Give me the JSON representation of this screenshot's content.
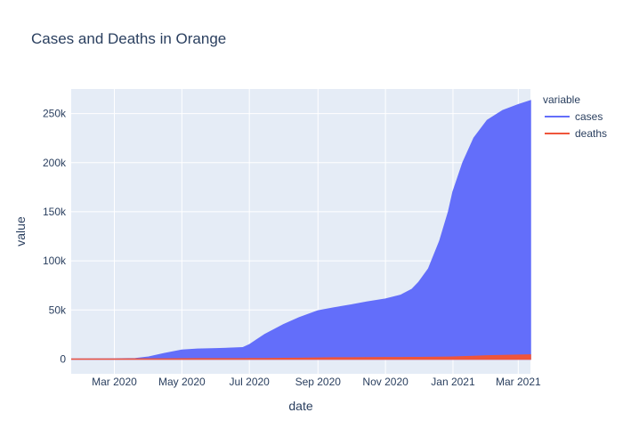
{
  "chart_data": {
    "type": "area",
    "title": "Cases and Deaths in Orange",
    "xlabel": "date",
    "ylabel": "value",
    "legend_title": "variable",
    "legend_position": "right",
    "grid": true,
    "ylim": [
      -15000,
      275000
    ],
    "xlim": [
      "2020-01-22",
      "2021-03-12"
    ],
    "x_ticks": [
      {
        "date": "2020-03-01",
        "label": "Mar 2020"
      },
      {
        "date": "2020-05-01",
        "label": "May 2020"
      },
      {
        "date": "2020-07-01",
        "label": "Jul 2020"
      },
      {
        "date": "2020-09-01",
        "label": "Sep 2020"
      },
      {
        "date": "2020-11-01",
        "label": "Nov 2020"
      },
      {
        "date": "2021-01-01",
        "label": "Jan 2021"
      },
      {
        "date": "2021-03-01",
        "label": "Mar 2021"
      }
    ],
    "y_ticks": [
      {
        "value": 0,
        "label": "0"
      },
      {
        "value": 50000,
        "label": "50k"
      },
      {
        "value": 100000,
        "label": "100k"
      },
      {
        "value": 150000,
        "label": "150k"
      },
      {
        "value": 200000,
        "label": "200k"
      },
      {
        "value": 250000,
        "label": "250k"
      }
    ],
    "x": [
      "2020-01-22",
      "2020-03-01",
      "2020-03-20",
      "2020-04-01",
      "2020-04-15",
      "2020-05-01",
      "2020-05-15",
      "2020-06-01",
      "2020-06-15",
      "2020-06-25",
      "2020-07-01",
      "2020-07-15",
      "2020-08-01",
      "2020-08-15",
      "2020-09-01",
      "2020-09-15",
      "2020-10-01",
      "2020-10-15",
      "2020-11-01",
      "2020-11-15",
      "2020-11-25",
      "2020-12-01",
      "2020-12-10",
      "2020-12-20",
      "2020-12-28",
      "2021-01-01",
      "2021-01-10",
      "2021-01-20",
      "2021-02-01",
      "2021-02-15",
      "2021-03-01",
      "2021-03-12"
    ],
    "series": [
      {
        "name": "cases",
        "color": "#636efa",
        "values": [
          0,
          50,
          400,
          2000,
          5500,
          9000,
          10000,
          10500,
          11000,
          11500,
          14500,
          25000,
          35000,
          42000,
          49000,
          52000,
          55000,
          58000,
          61000,
          65000,
          71000,
          78000,
          92000,
          120000,
          150000,
          170000,
          200000,
          225000,
          243000,
          253000,
          259000,
          263000
        ]
      },
      {
        "name": "deaths",
        "color": "#EF553B",
        "values": [
          0,
          0,
          10,
          40,
          100,
          200,
          250,
          290,
          310,
          330,
          360,
          420,
          600,
          800,
          1000,
          1150,
          1250,
          1330,
          1400,
          1450,
          1520,
          1580,
          1650,
          1780,
          1900,
          2000,
          2300,
          2700,
          3200,
          3600,
          3900,
          4100
        ]
      }
    ]
  }
}
